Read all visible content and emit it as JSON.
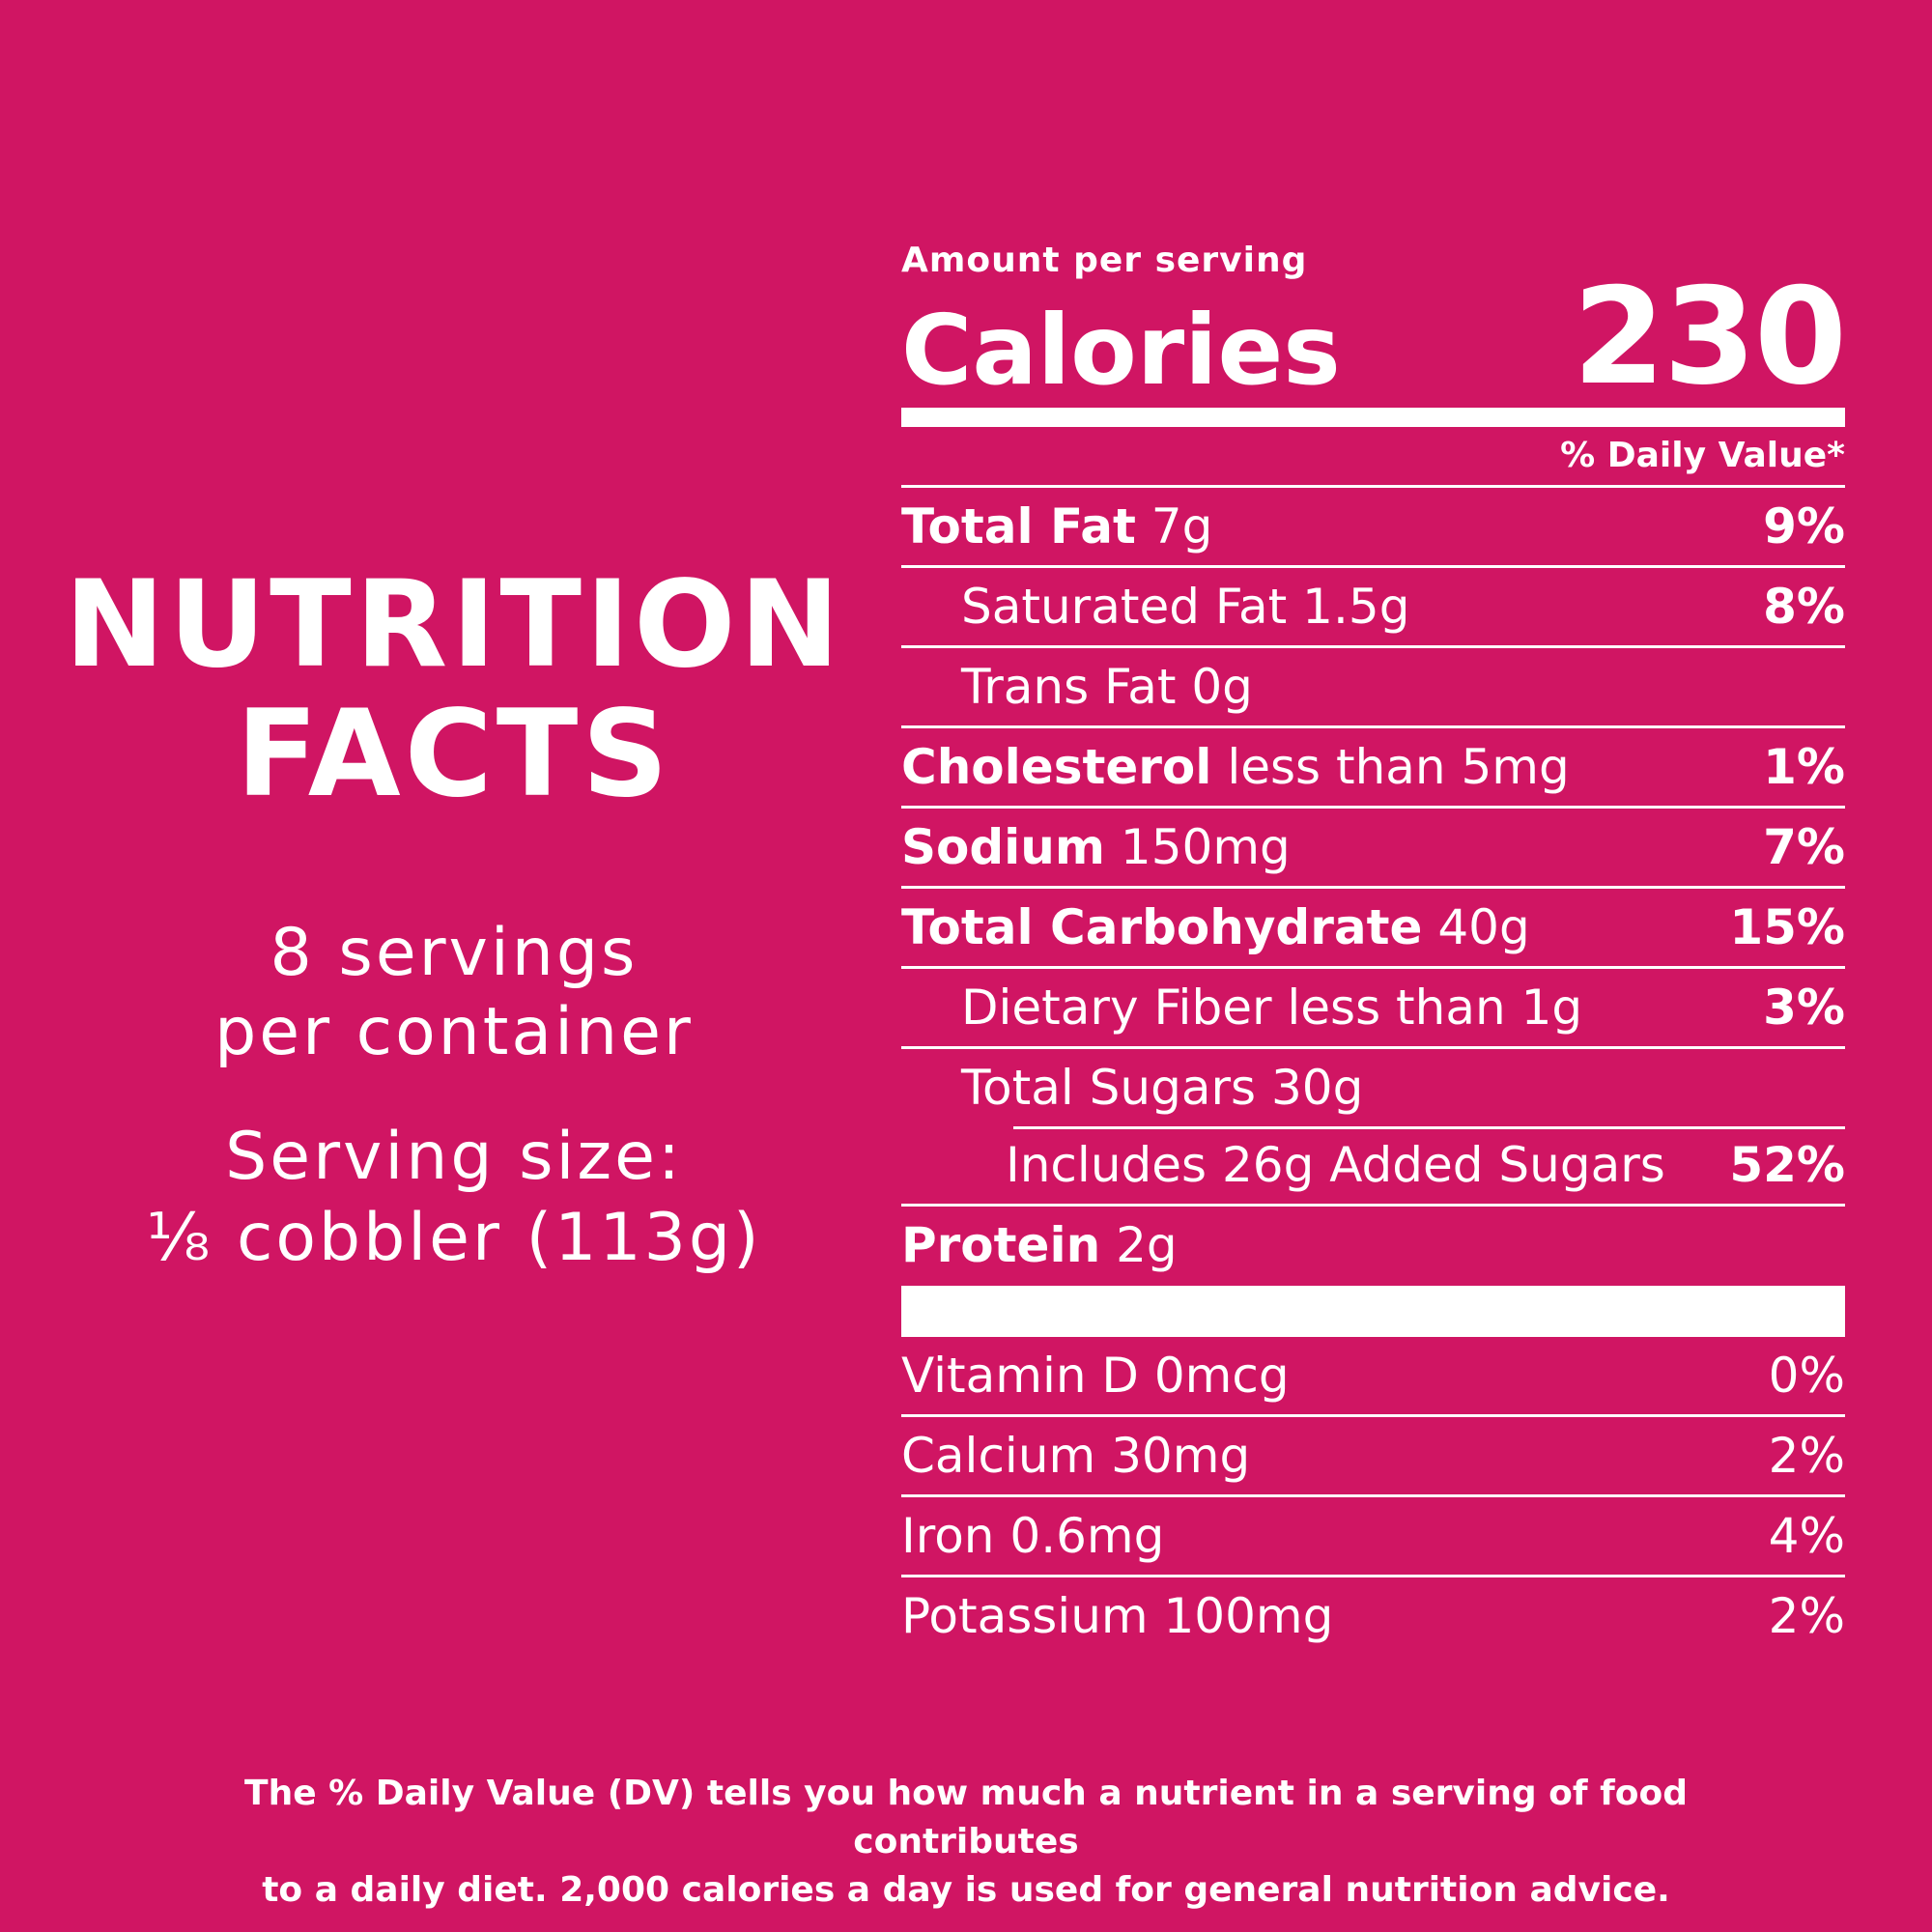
{
  "heading": {
    "line1": "NUTRITION",
    "line2": "FACTS"
  },
  "servings": {
    "line1": "8 servings",
    "line2": "per container"
  },
  "serving_size": {
    "line1": "Serving size:",
    "line2": "⅛ cobbler (113g)"
  },
  "amount_per_serving": "Amount per serving",
  "calories": {
    "label": "Calories",
    "value": "230"
  },
  "daily_value_header": "% Daily Value*",
  "nutrients": [
    {
      "name": "Total Fat",
      "amount": "7g",
      "dv": "9%"
    },
    {
      "name": "Saturated Fat 1.5g",
      "amount": "",
      "dv": "8%"
    },
    {
      "name": "Trans Fat 0g",
      "amount": "",
      "dv": ""
    },
    {
      "name": "Cholesterol",
      "amount": "less than 5mg",
      "dv": "1%"
    },
    {
      "name": "Sodium",
      "amount": "150mg",
      "dv": "7%"
    },
    {
      "name": "Total Carbohydrate",
      "amount": "40g",
      "dv": "15%"
    },
    {
      "name": "Dietary Fiber less than 1g",
      "amount": "",
      "dv": "3%"
    },
    {
      "name": "Total Sugars 30g",
      "amount": "",
      "dv": ""
    },
    {
      "name": "Includes 26g Added Sugars",
      "amount": "",
      "dv": "52%"
    },
    {
      "name": "Protein",
      "amount": "2g",
      "dv": ""
    }
  ],
  "vitamins": [
    {
      "name": "Vitamin D 0mcg",
      "dv": "0%"
    },
    {
      "name": "Calcium 30mg",
      "dv": "2%"
    },
    {
      "name": "Iron 0.6mg",
      "dv": "4%"
    },
    {
      "name": "Potassium 100mg",
      "dv": "2%"
    }
  ],
  "footnote": {
    "line1": "The % Daily Value (DV) tells you how much a nutrient in a serving of food contributes",
    "line2": "to a daily diet. 2,000 calories a day is used for general nutrition advice."
  },
  "colors": {
    "background": "#d01563",
    "text": "#ffffff"
  }
}
